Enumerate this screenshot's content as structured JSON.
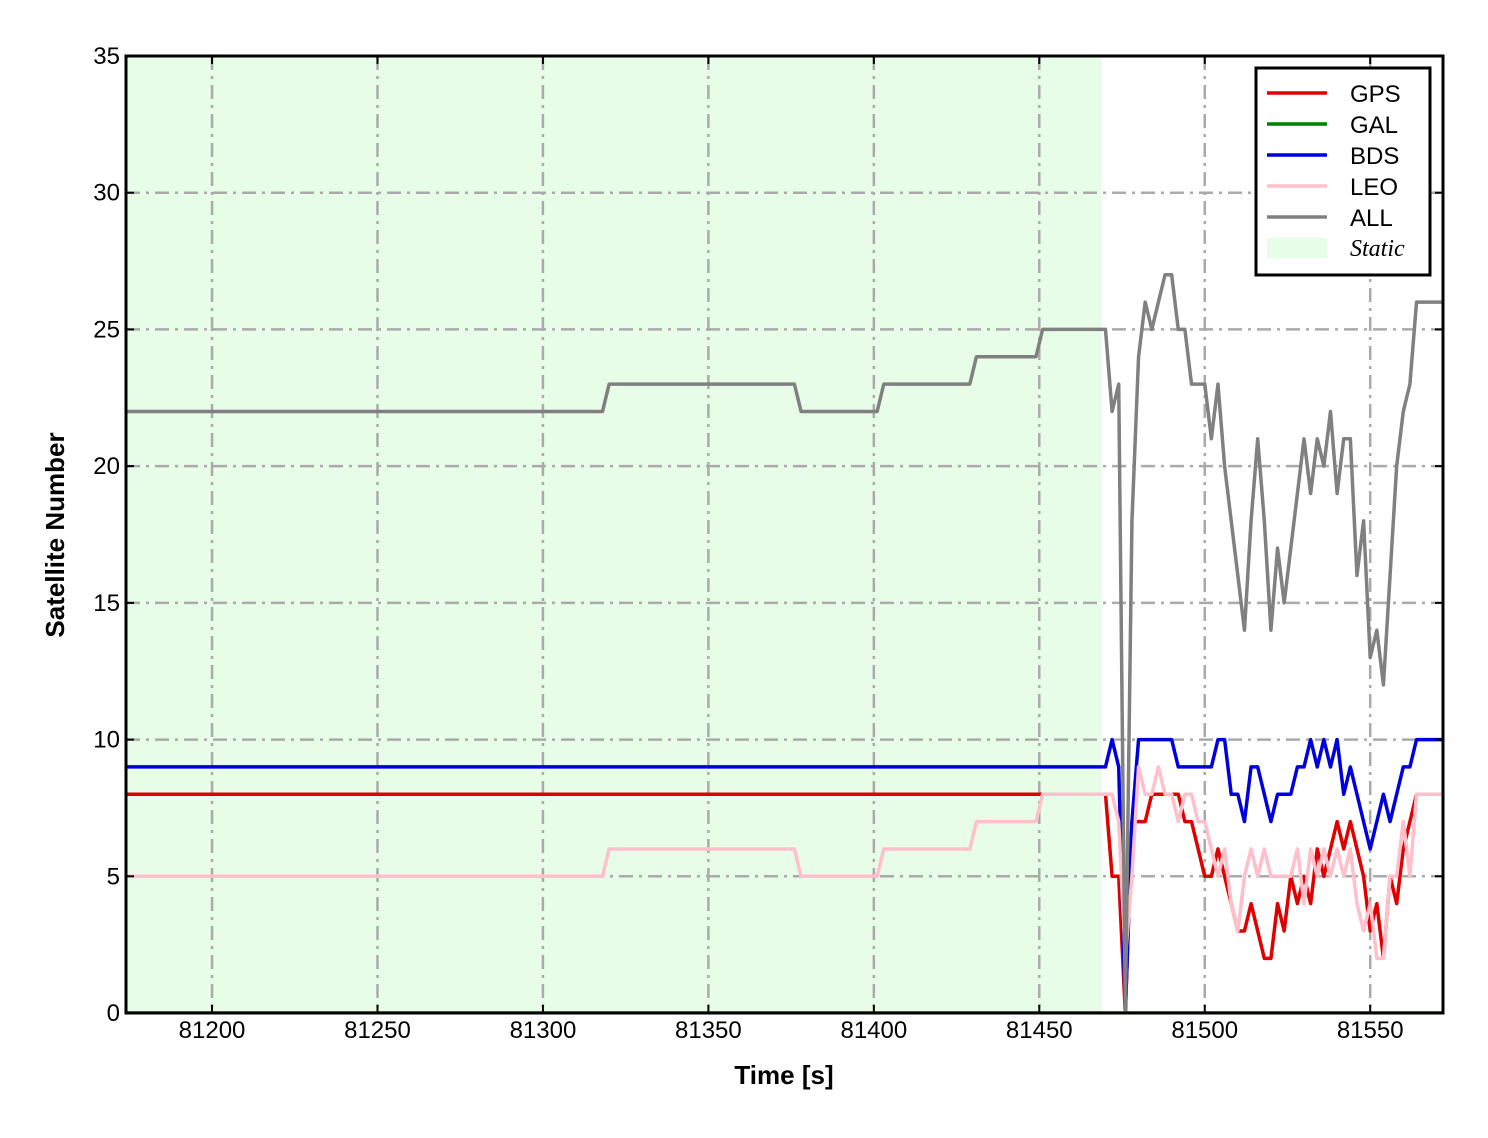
{
  "chart_data": {
    "type": "line",
    "xlabel": "Time [s]",
    "ylabel": "Satellite Number",
    "xlim": [
      81174,
      81572
    ],
    "ylim": [
      0,
      35
    ],
    "xticks": [
      81200,
      81250,
      81300,
      81350,
      81400,
      81450,
      81500,
      81550
    ],
    "yticks": [
      0,
      5,
      10,
      15,
      20,
      25,
      30,
      35
    ],
    "grid": true,
    "legend": "upper right",
    "shade": {
      "name": "Static",
      "x": [
        81174,
        81469
      ],
      "color": "#e8fde8"
    },
    "x": [
      81174,
      81318,
      81320,
      81376,
      81378,
      81401,
      81403,
      81429,
      81431,
      81449,
      81451,
      81470,
      81472,
      81474,
      81476,
      81478,
      81480,
      81482,
      81484,
      81486,
      81488,
      81490,
      81492,
      81494,
      81496,
      81498,
      81500,
      81502,
      81504,
      81506,
      81508,
      81510,
      81512,
      81514,
      81516,
      81518,
      81520,
      81522,
      81524,
      81526,
      81528,
      81530,
      81532,
      81534,
      81536,
      81538,
      81540,
      81542,
      81544,
      81546,
      81548,
      81550,
      81552,
      81554,
      81556,
      81558,
      81560,
      81562,
      81564,
      81566,
      81568,
      81570,
      81572
    ],
    "series": [
      {
        "name": "GPS",
        "color": "#e00000",
        "values": [
          8,
          8,
          8,
          8,
          8,
          8,
          8,
          8,
          8,
          8,
          8,
          8,
          5,
          5,
          0,
          7,
          7,
          7,
          8,
          8,
          8,
          8,
          8,
          7,
          7,
          6,
          5,
          5,
          6,
          5,
          4,
          3,
          3,
          4,
          3,
          2,
          2,
          4,
          3,
          5,
          4,
          5,
          4,
          6,
          5,
          6,
          7,
          6,
          7,
          6,
          5,
          3,
          4,
          2,
          5,
          4,
          6,
          7,
          8,
          8,
          8,
          8,
          8
        ]
      },
      {
        "name": "GAL",
        "color": "#008000",
        "values": [
          0,
          0,
          0,
          0,
          0,
          0,
          0,
          0,
          0,
          0,
          0,
          0,
          0,
          0,
          0,
          0,
          0,
          0,
          0,
          0,
          0,
          0,
          0,
          0,
          0,
          0,
          0,
          0,
          0,
          0,
          0,
          0,
          0,
          0,
          0,
          0,
          0,
          0,
          0,
          0,
          0,
          0,
          0,
          0,
          0,
          0,
          0,
          0,
          0,
          0,
          0,
          0,
          0,
          0,
          0,
          0,
          0,
          0,
          0,
          0,
          0,
          0,
          0
        ]
      },
      {
        "name": "BDS",
        "color": "#0000dd",
        "values": [
          9,
          9,
          9,
          9,
          9,
          9,
          9,
          9,
          9,
          9,
          9,
          9,
          10,
          9,
          0,
          7,
          10,
          10,
          10,
          10,
          10,
          10,
          9,
          9,
          9,
          9,
          9,
          9,
          10,
          10,
          8,
          8,
          7,
          9,
          9,
          8,
          7,
          8,
          8,
          8,
          9,
          9,
          10,
          9,
          10,
          9,
          10,
          8,
          9,
          8,
          7,
          6,
          7,
          8,
          7,
          8,
          9,
          9,
          10,
          10,
          10,
          10,
          10
        ]
      },
      {
        "name": "LEO",
        "color": "#ffc0cb",
        "values": [
          5,
          5,
          6,
          6,
          5,
          5,
          6,
          6,
          7,
          7,
          8,
          8,
          8,
          7,
          2,
          5,
          9,
          8,
          8,
          9,
          8,
          8,
          7,
          8,
          8,
          7,
          7,
          6,
          5,
          6,
          4,
          3,
          5,
          6,
          5,
          6,
          5,
          5,
          5,
          5,
          6,
          4,
          6,
          5,
          6,
          5,
          6,
          5,
          6,
          4,
          3,
          4,
          2,
          2,
          5,
          5,
          7,
          5,
          8,
          8,
          8,
          8,
          8
        ]
      },
      {
        "name": "ALL",
        "color": "#808080",
        "values": [
          22,
          22,
          23,
          23,
          22,
          22,
          23,
          23,
          24,
          24,
          25,
          25,
          22,
          23,
          0,
          18,
          24,
          26,
          25,
          26,
          27,
          27,
          25,
          25,
          23,
          23,
          23,
          21,
          23,
          20,
          18,
          16,
          14,
          18,
          21,
          18,
          14,
          17,
          15,
          17,
          19,
          21,
          19,
          21,
          20,
          22,
          19,
          21,
          21,
          16,
          18,
          13,
          14,
          12,
          16,
          20,
          22,
          23,
          26,
          26,
          26,
          26,
          26
        ]
      }
    ]
  }
}
